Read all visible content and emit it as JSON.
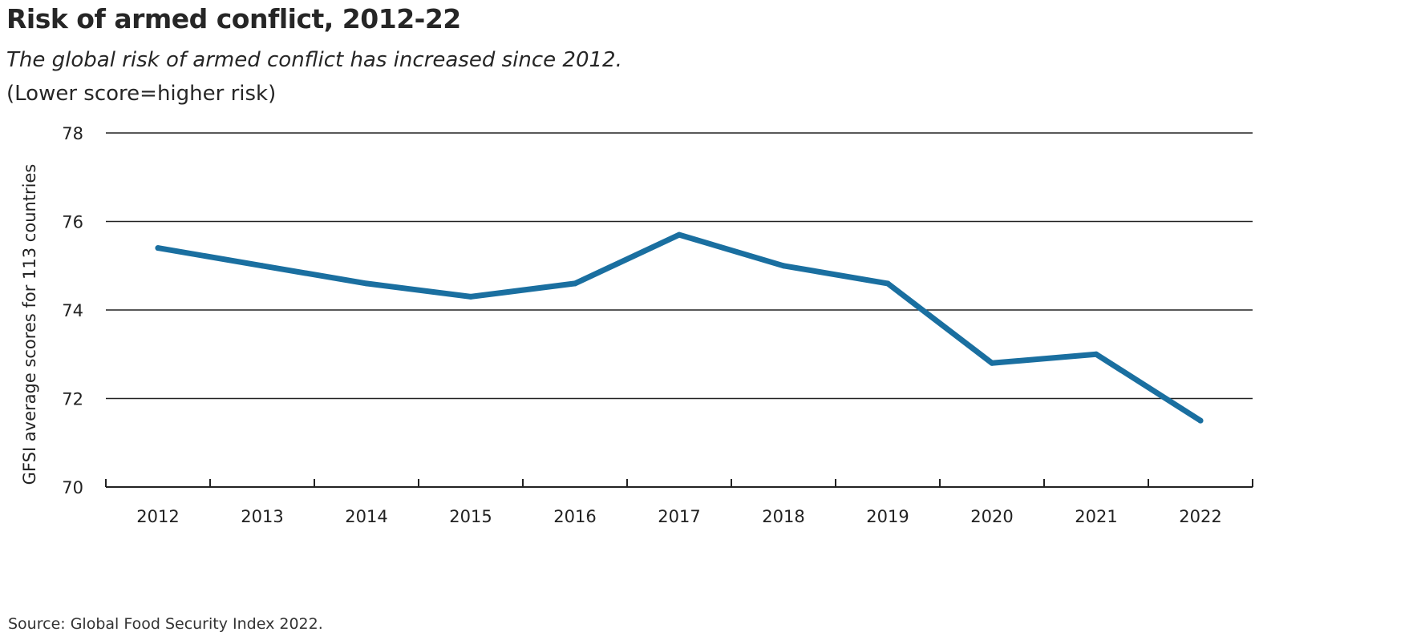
{
  "chart_data": {
    "type": "line",
    "title": "Risk of armed conflict, 2012-22",
    "subtitle": "The global risk of armed conflict has increased since 2012.",
    "note": "(Lower score=higher risk)",
    "ylabel": "GFSI average scores for 113 countries",
    "xlabel": "",
    "x": [
      "2012",
      "2013",
      "2014",
      "2015",
      "2016",
      "2017",
      "2018",
      "2019",
      "2020",
      "2021",
      "2022"
    ],
    "series": [
      {
        "values": [
          75.4,
          75.0,
          74.6,
          74.3,
          74.6,
          75.7,
          75.0,
          74.6,
          72.8,
          73.0,
          71.5
        ],
        "color": "#1a6fa0"
      }
    ],
    "ylim": [
      70,
      78
    ],
    "yticks": [
      "70",
      "72",
      "74",
      "76",
      "78"
    ],
    "grid": true,
    "source": "Source: Global Food Security Index 2022."
  }
}
